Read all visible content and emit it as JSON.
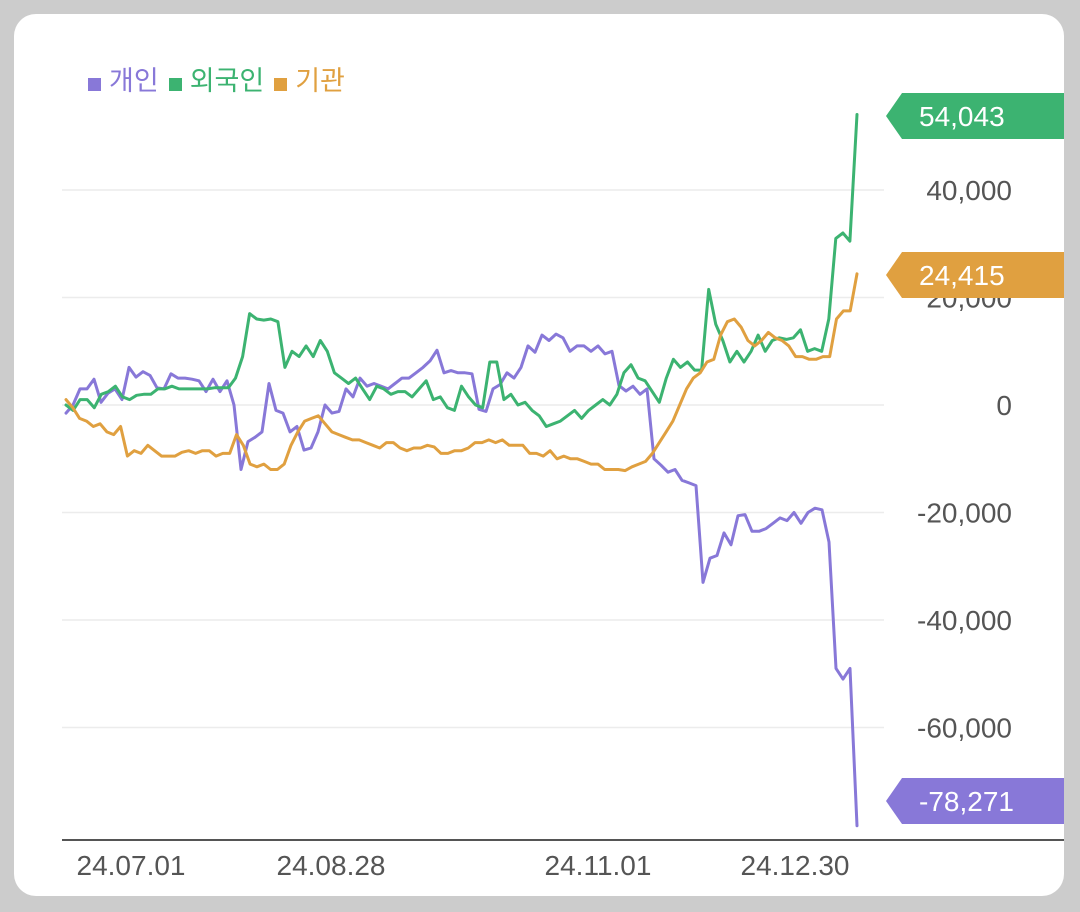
{
  "chart_data": {
    "type": "line",
    "x_ticks": [
      "24.07.01",
      "24.08.28",
      "24.11.01",
      "24.12.30"
    ],
    "y_ticks": [
      {
        "value": 40000,
        "label": "40,000"
      },
      {
        "value": 20000,
        "label": "20,000"
      },
      {
        "value": 0,
        "label": "0"
      },
      {
        "value": -20000,
        "label": "-20,000"
      },
      {
        "value": -40000,
        "label": "-40,000"
      },
      {
        "value": -60000,
        "label": "-60,000"
      }
    ],
    "ylim": [
      -78271,
      54043
    ],
    "grid": true,
    "legend_position": "top-left",
    "series": [
      {
        "name": "개인",
        "color": "#8878d8",
        "end_label": "-78,271",
        "values": [
          -1500,
          0,
          3000,
          3000,
          4800,
          500,
          2200,
          3000,
          1000,
          7000,
          5200,
          6200,
          5500,
          3200,
          3000,
          5800,
          5000,
          5000,
          4800,
          4500,
          2500,
          4800,
          2500,
          4500,
          0,
          -12000,
          -6800,
          -6000,
          -5000,
          4000,
          -1000,
          -1500,
          -5000,
          -4000,
          -8400,
          -8000,
          -5000,
          0,
          -1500,
          -1200,
          3000,
          1500,
          5000,
          3500,
          4000,
          3500,
          3000,
          4000,
          5000,
          5000,
          6000,
          7000,
          8200,
          10200,
          6000,
          6400,
          6000,
          6000,
          5800,
          -800,
          -1200,
          3000,
          3800,
          6000,
          5000,
          7000,
          11000,
          9800,
          13000,
          12000,
          13200,
          12500,
          10000,
          11000,
          11000,
          10000,
          11000,
          9500,
          10000,
          3600,
          2600,
          3500,
          2000,
          3000,
          -10000,
          -11200,
          -12500,
          -12000,
          -14000,
          -14500,
          -15000,
          -33000,
          -28500,
          -28000,
          -23800,
          -26000,
          -20600,
          -20400,
          -23500,
          -23500,
          -23000,
          -22000,
          -21000,
          -21500,
          -20000,
          -22000,
          -20000,
          -19200,
          -19500,
          -25500,
          -49000,
          -51000,
          -49000,
          -78271
        ]
      },
      {
        "name": "외국인",
        "color": "#3cb371",
        "end_label": "54,043",
        "values": [
          0,
          -1000,
          1000,
          1000,
          -500,
          2000,
          2500,
          3500,
          1500,
          1000,
          1800,
          2000,
          2000,
          3000,
          3000,
          3500,
          3000,
          3000,
          3000,
          3000,
          3000,
          3200,
          3200,
          3200,
          5000,
          9000,
          17000,
          16000,
          15800,
          16000,
          15500,
          7000,
          10000,
          9000,
          11000,
          9000,
          12000,
          10000,
          6000,
          5000,
          4000,
          5000,
          3000,
          1000,
          3500,
          3000,
          2000,
          2500,
          2500,
          1500,
          3000,
          4500,
          1000,
          1500,
          -500,
          -1000,
          3500,
          1500,
          0,
          -500,
          8000,
          8000,
          1000,
          2000,
          0,
          500,
          -1000,
          -2000,
          -4000,
          -3500,
          -3000,
          -2000,
          -1000,
          -2500,
          -1000,
          0,
          1000,
          0,
          2000,
          6000,
          7500,
          5000,
          4500,
          2500,
          500,
          5000,
          8500,
          7000,
          8000,
          6500,
          6500,
          21500,
          15000,
          12000,
          8000,
          10000,
          8000,
          10000,
          13000,
          10000,
          12000,
          12500,
          12200,
          12500,
          14000,
          10000,
          10500,
          10000,
          16000,
          31000,
          32000,
          30500,
          54043
        ]
      },
      {
        "name": "기관",
        "color": "#e0a040",
        "end_label": "24,415",
        "values": [
          1000,
          -500,
          -2500,
          -3000,
          -4000,
          -3500,
          -5000,
          -5500,
          -4000,
          -9500,
          -8500,
          -9000,
          -7500,
          -8500,
          -9500,
          -9500,
          -9500,
          -8800,
          -8500,
          -9000,
          -8500,
          -8500,
          -9500,
          -9000,
          -9000,
          -5500,
          -7500,
          -11000,
          -11500,
          -11000,
          -12000,
          -12000,
          -11000,
          -7500,
          -5000,
          -3000,
          -2500,
          -2000,
          -3500,
          -5000,
          -5500,
          -6000,
          -6500,
          -6500,
          -7000,
          -7500,
          -8000,
          -7000,
          -7000,
          -8000,
          -8500,
          -8000,
          -8000,
          -7500,
          -7800,
          -9000,
          -9000,
          -8500,
          -8500,
          -8000,
          -7000,
          -7000,
          -6500,
          -7000,
          -6500,
          -7500,
          -7500,
          -7500,
          -9000,
          -9000,
          -9500,
          -8500,
          -10000,
          -9500,
          -10000,
          -10000,
          -10500,
          -11000,
          -11000,
          -12000,
          -12000,
          -12000,
          -12200,
          -11500,
          -11000,
          -10500,
          -9000,
          -7000,
          -5000,
          -3000,
          0,
          3000,
          5000,
          6000,
          8000,
          8500,
          13000,
          15500,
          16000,
          14500,
          12000,
          11000,
          12000,
          13500,
          12500,
          12000,
          11000,
          9000,
          9000,
          8500,
          8500,
          9000,
          9000,
          16000,
          17500,
          17500,
          24415
        ]
      }
    ]
  }
}
